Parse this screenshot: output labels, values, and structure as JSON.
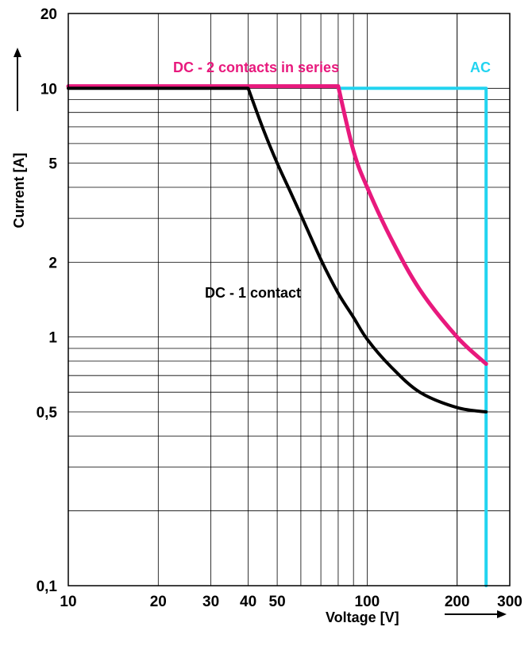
{
  "chart_data": {
    "type": "line",
    "title": "",
    "xlabel": "Voltage [V]",
    "ylabel": "Current [A]",
    "x_scale": "log",
    "y_scale": "log",
    "xlim": [
      10,
      300
    ],
    "ylim": [
      0.1,
      20
    ],
    "grid": true,
    "x_ticks": [
      {
        "value": 10,
        "label": "10"
      },
      {
        "value": 20,
        "label": "20"
      },
      {
        "value": 30,
        "label": "30"
      },
      {
        "value": 40,
        "label": "40"
      },
      {
        "value": 50,
        "label": "50"
      },
      {
        "value": 100,
        "label": "100"
      },
      {
        "value": 200,
        "label": "200"
      },
      {
        "value": 300,
        "label": "300"
      }
    ],
    "y_ticks": [
      {
        "value": 0.1,
        "label": "0,1"
      },
      {
        "value": 0.5,
        "label": "0,5"
      },
      {
        "value": 1,
        "label": "1"
      },
      {
        "value": 2,
        "label": "2"
      },
      {
        "value": 5,
        "label": "5"
      },
      {
        "value": 10,
        "label": "10"
      },
      {
        "value": 20,
        "label": "20"
      }
    ],
    "series": [
      {
        "name": "DC - 1 contact",
        "color": "#000000",
        "x": [
          10,
          20,
          30,
          40,
          45,
          50,
          55,
          60,
          70,
          80,
          90,
          100,
          120,
          150,
          200,
          250
        ],
        "y": [
          10,
          10,
          10,
          10,
          6.8,
          5.0,
          3.9,
          3.1,
          2.05,
          1.5,
          1.2,
          0.98,
          0.76,
          0.6,
          0.52,
          0.5
        ]
      },
      {
        "name": "DC - 2 contacts in series",
        "color": "#e8197d",
        "x": [
          10,
          40,
          80,
          90,
          100,
          120,
          150,
          200,
          250
        ],
        "y": [
          10.2,
          10.2,
          10.2,
          5.6,
          4.0,
          2.5,
          1.55,
          1.0,
          0.78
        ]
      },
      {
        "name": "AC",
        "color": "#22d4f0",
        "x": [
          80,
          250,
          250
        ],
        "y": [
          10,
          10,
          0.1
        ]
      }
    ]
  }
}
